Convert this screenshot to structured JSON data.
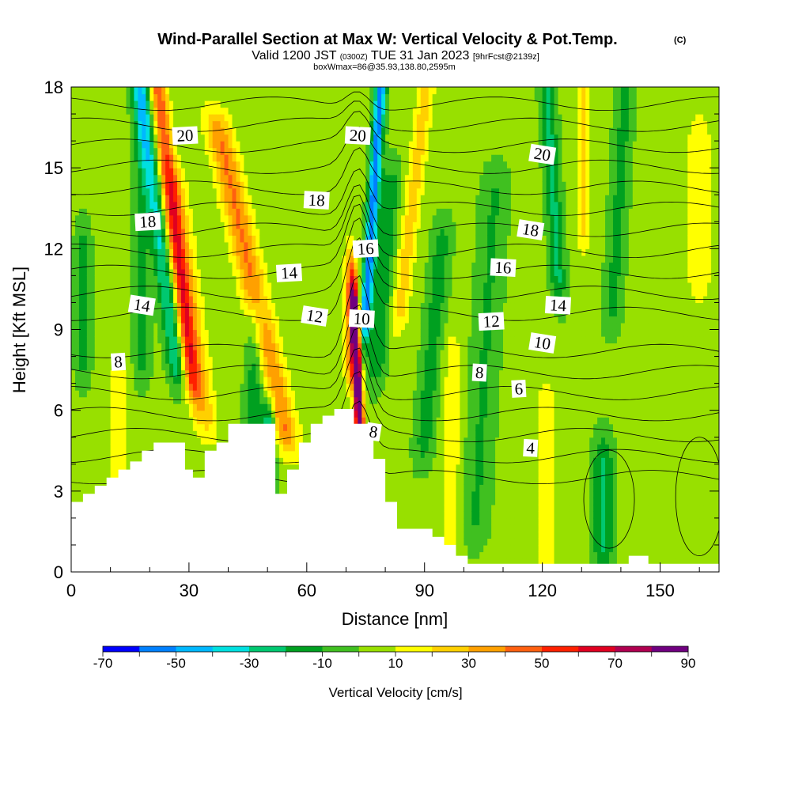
{
  "chart_data": {
    "type": "heatmap",
    "title": "Wind-Parallel Section at Max W: Vertical Velocity & Pot.Temp.",
    "title_suffix": "(C)",
    "subtitle_valid": "Valid 1200 JST",
    "subtitle_zulu": "(0300Z)",
    "subtitle_date": "TUE 31 Jan 2023",
    "subtitle_fcst": "[9hrFcst@2139z]",
    "subtitle_box": "boxWmax=86@35.93,138.80,2595m",
    "xlabel": "Distance [nm]",
    "ylabel": "Height [Kft MSL]",
    "xlim": [
      0,
      165
    ],
    "ylim": [
      0,
      18
    ],
    "x_ticks": [
      "0",
      "30",
      "60",
      "90",
      "120",
      "150"
    ],
    "y_ticks": [
      "0",
      "3",
      "6",
      "9",
      "12",
      "15",
      "18"
    ],
    "colorbar_label": "Vertical Velocity [cm/s]",
    "colorbar_levels": [
      -70,
      -60,
      -50,
      -40,
      -30,
      -20,
      -10,
      0,
      10,
      20,
      30,
      40,
      50,
      60,
      70,
      80,
      90
    ],
    "colorbar_tick_labels": [
      "-70",
      "-50",
      "-30",
      "-10",
      "10",
      "30",
      "50",
      "70",
      "90"
    ],
    "colorbar_colors": [
      "#0000ff",
      "#0080ff",
      "#00b8ff",
      "#00e0e0",
      "#00c870",
      "#00a020",
      "#40c020",
      "#98e000",
      "#ffff00",
      "#ffd000",
      "#ffa000",
      "#ff6010",
      "#ff2000",
      "#e00020",
      "#b00050",
      "#700080"
    ],
    "contour_labels": [
      {
        "text": "20",
        "x": 29,
        "y": 16.2
      },
      {
        "text": "20",
        "x": 73,
        "y": 16.2
      },
      {
        "text": "20",
        "x": 120,
        "y": 15.5
      },
      {
        "text": "18",
        "x": 19.5,
        "y": 13.0
      },
      {
        "text": "18",
        "x": 62.5,
        "y": 13.8
      },
      {
        "text": "18",
        "x": 117,
        "y": 12.7
      },
      {
        "text": "16",
        "x": 75,
        "y": 12.0
      },
      {
        "text": "16",
        "x": 110,
        "y": 11.3
      },
      {
        "text": "14",
        "x": 18,
        "y": 9.9
      },
      {
        "text": "14",
        "x": 55.5,
        "y": 11.1
      },
      {
        "text": "14",
        "x": 124,
        "y": 9.9
      },
      {
        "text": "12",
        "x": 62,
        "y": 9.5
      },
      {
        "text": "12",
        "x": 107,
        "y": 9.3
      },
      {
        "text": "10",
        "x": 74,
        "y": 9.4
      },
      {
        "text": "10",
        "x": 120,
        "y": 8.5
      },
      {
        "text": "8",
        "x": 12,
        "y": 7.8
      },
      {
        "text": "8",
        "x": 104,
        "y": 7.4
      },
      {
        "text": "8",
        "x": 77,
        "y": 5.2
      },
      {
        "text": "6",
        "x": 114,
        "y": 6.8
      },
      {
        "text": "4",
        "x": 117,
        "y": 4.6
      }
    ]
  }
}
